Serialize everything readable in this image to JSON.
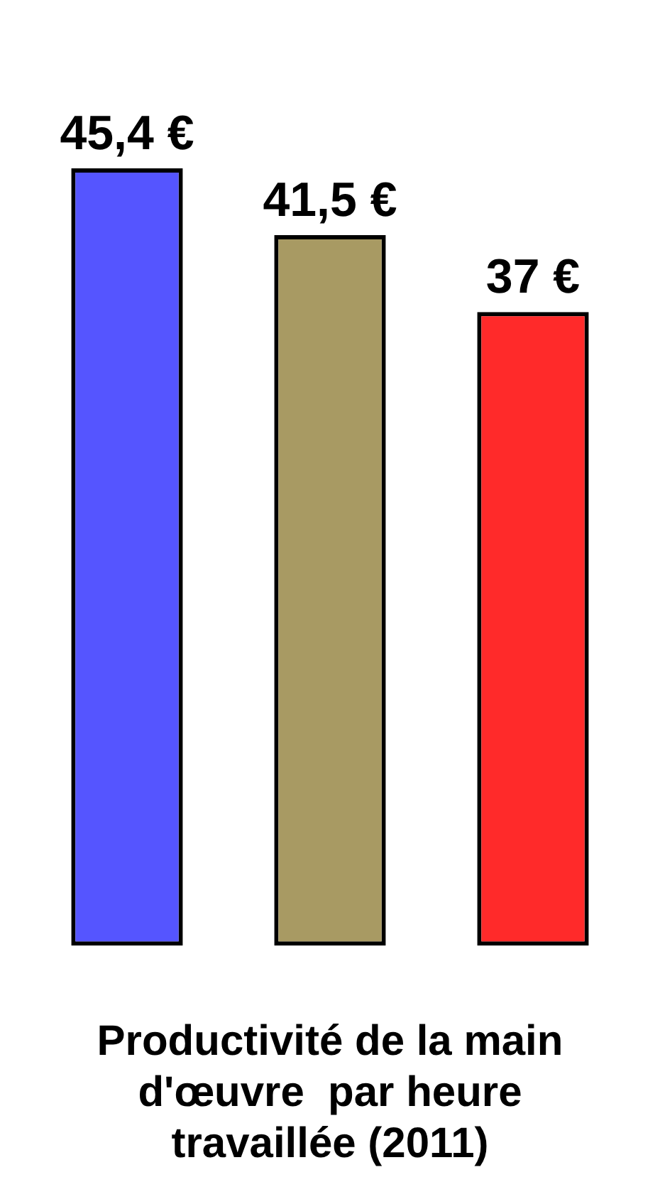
{
  "chart_data": {
    "type": "bar",
    "title": "Productivité de la main d'œuvre  par heure travaillée (2011)",
    "categories": [
      null,
      null,
      null
    ],
    "values": [
      45.4,
      41.5,
      37
    ],
    "colors": [
      "#5555ff",
      "#a89a63",
      "#ff2a2a"
    ],
    "value_labels": [
      "45,4 €",
      "41,5 €",
      "37 €"
    ],
    "grid": false,
    "legend": false
  }
}
